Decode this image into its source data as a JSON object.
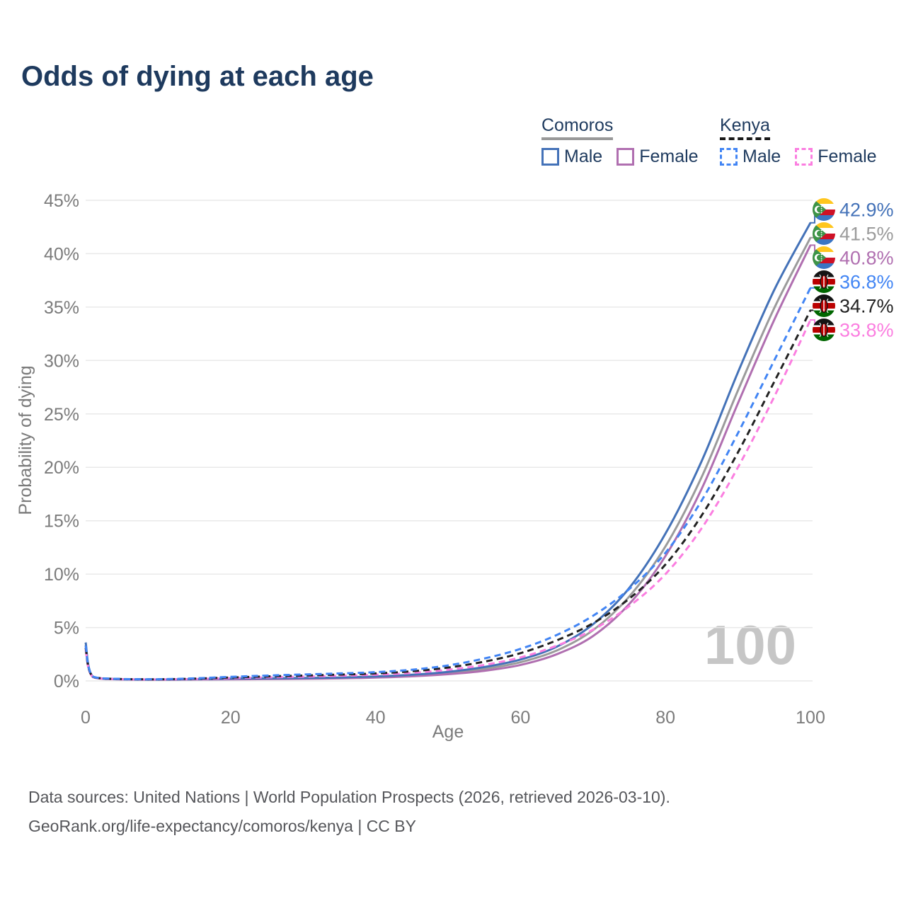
{
  "title": "Odds of dying at each age",
  "watermark": "100",
  "legend": {
    "groups": [
      {
        "label": "Comoros",
        "line_style": "solid",
        "underline_color": "#999999",
        "items": [
          {
            "label": "Male",
            "color": "#4472b8"
          },
          {
            "label": "Female",
            "color": "#b06fb0"
          }
        ]
      },
      {
        "label": "Kenya",
        "line_style": "dashed",
        "underline_color": "#1a1a1a",
        "items": [
          {
            "label": "Male",
            "color": "#4285f4"
          },
          {
            "label": "Female",
            "color": "#fb7ee0"
          }
        ]
      }
    ]
  },
  "footer": {
    "line1": "Data sources: United Nations | World Population Prospects (2026, retrieved 2026-03-10).",
    "line2": "GeoRank.org/life-expectancy/comoros/kenya | CC BY"
  },
  "chart_data": {
    "type": "line",
    "title": "Odds of dying at each age",
    "xlabel": "Age",
    "ylabel": "Probability of dying",
    "xlim": [
      0,
      100
    ],
    "ylim": [
      0,
      45
    ],
    "x_ticks": [
      0,
      20,
      40,
      60,
      80,
      100
    ],
    "y_ticks": [
      0,
      5,
      10,
      15,
      20,
      25,
      30,
      35,
      40,
      45
    ],
    "y_tick_suffix": "%",
    "grid": "horizontal-only",
    "legend_position": "top-right",
    "x": [
      0,
      1,
      5,
      10,
      15,
      20,
      25,
      30,
      35,
      40,
      45,
      50,
      55,
      60,
      65,
      70,
      75,
      80,
      85,
      90,
      95,
      100
    ],
    "series": [
      {
        "name": "Comoros",
        "color": "#9b9b9b",
        "style": "solid",
        "flag": "comoros",
        "end_label": "41.5%",
        "values": [
          3.35,
          0.38,
          0.15,
          0.12,
          0.14,
          0.18,
          0.21,
          0.24,
          0.28,
          0.37,
          0.51,
          0.74,
          1.12,
          1.75,
          2.85,
          4.75,
          7.9,
          12.6,
          19.1,
          27.2,
          34.9,
          41.5
        ]
      },
      {
        "name": "Comoros Female",
        "color": "#b06fb0",
        "style": "solid",
        "flag": "comoros",
        "end_label": "40.8%",
        "values": [
          3.1,
          0.36,
          0.14,
          0.11,
          0.13,
          0.15,
          0.17,
          0.2,
          0.24,
          0.31,
          0.43,
          0.63,
          0.95,
          1.5,
          2.5,
          4.2,
          7.2,
          11.7,
          18.0,
          26.0,
          33.8,
          40.8
        ]
      },
      {
        "name": "Comoros Male",
        "color": "#4472b8",
        "style": "solid",
        "flag": "comoros",
        "end_label": "42.9%",
        "values": [
          3.6,
          0.4,
          0.16,
          0.13,
          0.16,
          0.21,
          0.24,
          0.27,
          0.32,
          0.42,
          0.58,
          0.85,
          1.3,
          2.0,
          3.2,
          5.3,
          8.7,
          13.8,
          20.6,
          28.9,
          36.6,
          42.9
        ]
      },
      {
        "name": "Kenya Female",
        "color": "#fb7ee0",
        "style": "dashed",
        "flag": "kenya",
        "end_label": "33.8%",
        "values": [
          2.9,
          0.38,
          0.16,
          0.14,
          0.18,
          0.26,
          0.33,
          0.4,
          0.48,
          0.58,
          0.75,
          1.05,
          1.5,
          2.2,
          3.3,
          4.8,
          7.0,
          10.0,
          14.3,
          20.0,
          26.6,
          33.8
        ]
      },
      {
        "name": "Kenya",
        "color": "#222222",
        "style": "dashed",
        "flag": "kenya",
        "end_label": "34.7%",
        "values": [
          3.1,
          0.4,
          0.17,
          0.15,
          0.21,
          0.32,
          0.42,
          0.5,
          0.59,
          0.7,
          0.9,
          1.25,
          1.8,
          2.6,
          3.8,
          5.4,
          7.7,
          10.9,
          15.5,
          21.4,
          28.0,
          34.7
        ]
      },
      {
        "name": "Kenya Male",
        "color": "#4285f4",
        "style": "dashed",
        "flag": "kenya",
        "end_label": "36.8%",
        "values": [
          3.3,
          0.42,
          0.18,
          0.16,
          0.24,
          0.38,
          0.5,
          0.6,
          0.7,
          0.82,
          1.05,
          1.45,
          2.1,
          3.0,
          4.3,
          6.1,
          8.6,
          12.0,
          16.9,
          23.2,
          30.0,
          36.8
        ]
      }
    ]
  }
}
